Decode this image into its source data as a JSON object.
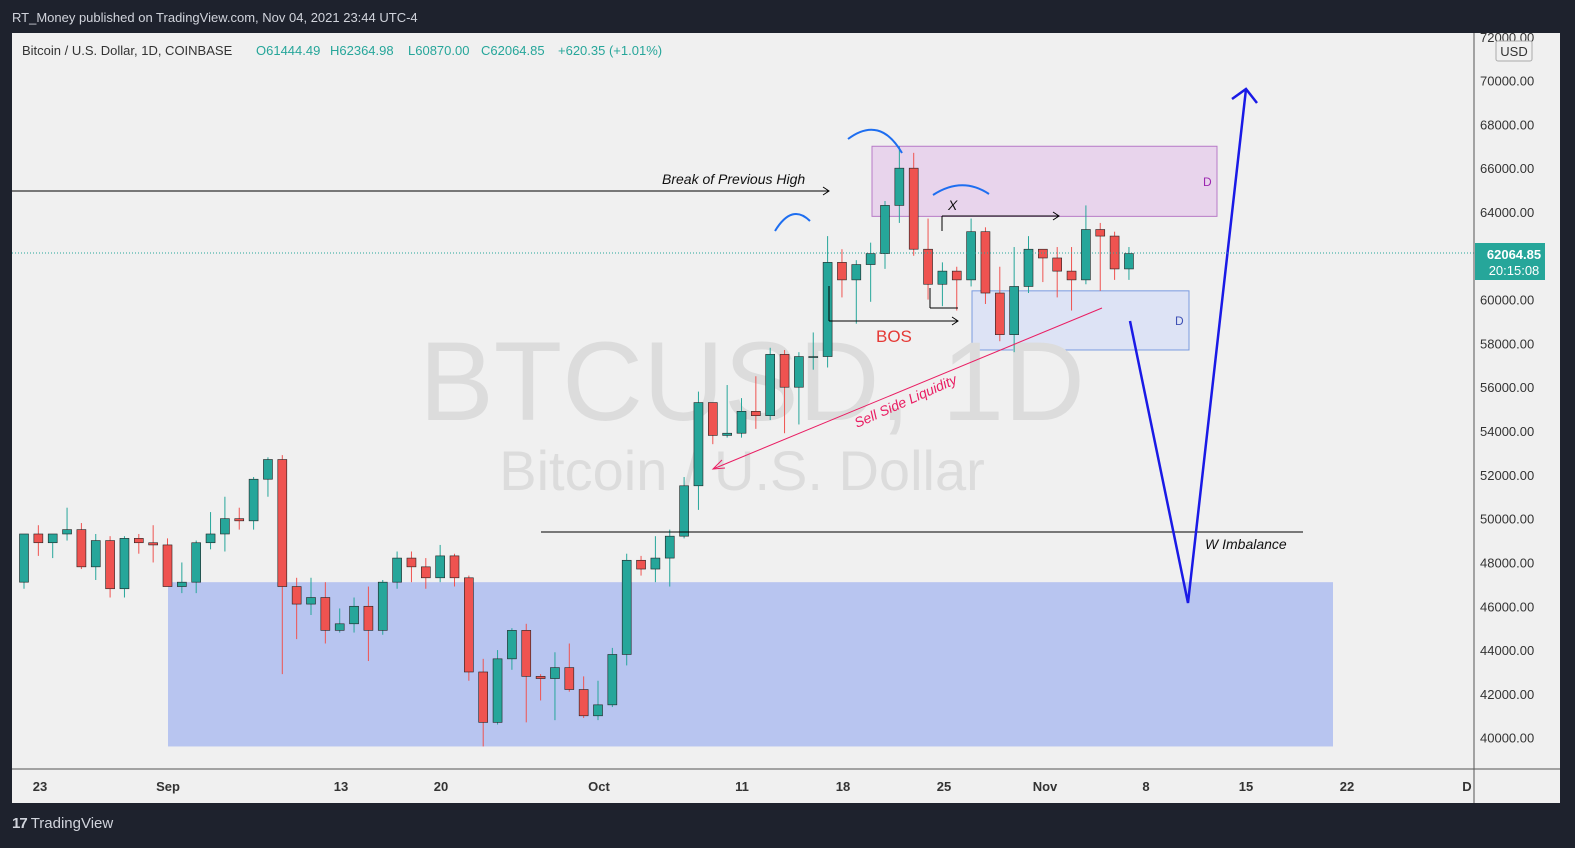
{
  "header": {
    "published": "RT_Money published on TradingView.com, Nov 04, 2021 23:44 UTC-4"
  },
  "legend": {
    "symbol": "Bitcoin / U.S. Dollar, 1D, COINBASE",
    "open": "O61444.49",
    "high": "H62364.98",
    "low": "L60870.00",
    "close": "C62064.85",
    "change": "+620.35 (+1.01%)"
  },
  "watermark": {
    "ticker": "BTCUSD, 1D",
    "name": "Bitcoin / U.S. Dollar"
  },
  "price_axis": {
    "currency": "USD",
    "last_price": "62064.85",
    "countdown": "20:15:08",
    "tick_labels": [
      "72000.00",
      "70000.00",
      "68000.00",
      "66000.00",
      "64000.00",
      "62000.00",
      "60000.00",
      "58000.00",
      "56000.00",
      "54000.00",
      "52000.00",
      "50000.00",
      "48000.00",
      "46000.00",
      "44000.00",
      "42000.00",
      "40000.00"
    ]
  },
  "annotations": {
    "break_high": "Break of Previous High",
    "bos": "BOS",
    "x": "X",
    "sell_side": "Sell Side Liquidity",
    "w_imbalance": "W Imbalance",
    "zone_upper_label": "D",
    "zone_lower_label": "D"
  },
  "footer": {
    "brand": "TradingView",
    "logo": "17"
  },
  "colors": {
    "up": "#26a69a",
    "down": "#ef5350",
    "blue_path": "#1a1ae6",
    "zone_big": "#b8c5f0",
    "zone_pink": "#e8d4ec",
    "zone_light": "#dde3f5",
    "annotation_pink": "#e91e63"
  },
  "chart_data": {
    "type": "candlestick",
    "title": "Bitcoin / U.S. Dollar, 1D, COINBASE",
    "x_tick_labels": [
      "23",
      "Sep",
      "13",
      "20",
      "Oct",
      "11",
      "18",
      "25",
      "Nov",
      "8",
      "15",
      "22",
      "D"
    ],
    "ylim": [
      39000,
      72500
    ],
    "candles": [
      {
        "d": "Aug 20",
        "o": 47100,
        "h": 49300,
        "l": 46800,
        "c": 49300
      },
      {
        "d": "Aug 21",
        "o": 49300,
        "h": 49700,
        "l": 48300,
        "c": 48900
      },
      {
        "d": "Aug 22",
        "o": 48900,
        "h": 49300,
        "l": 48200,
        "c": 49300
      },
      {
        "d": "Aug 23",
        "o": 49300,
        "h": 50500,
        "l": 49000,
        "c": 49500
      },
      {
        "d": "Aug 24",
        "o": 49500,
        "h": 49800,
        "l": 47700,
        "c": 47800
      },
      {
        "d": "Aug 25",
        "o": 47800,
        "h": 49300,
        "l": 47200,
        "c": 49000
      },
      {
        "d": "Aug 26",
        "o": 49000,
        "h": 49200,
        "l": 46400,
        "c": 46800
      },
      {
        "d": "Aug 27",
        "o": 46800,
        "h": 49200,
        "l": 46400,
        "c": 49100
      },
      {
        "d": "Aug 28",
        "o": 49100,
        "h": 49300,
        "l": 48400,
        "c": 48900
      },
      {
        "d": "Aug 29",
        "o": 48900,
        "h": 49700,
        "l": 48000,
        "c": 48800
      },
      {
        "d": "Aug 30",
        "o": 48800,
        "h": 49100,
        "l": 46900,
        "c": 46900
      },
      {
        "d": "Aug 31",
        "o": 46900,
        "h": 48000,
        "l": 46600,
        "c": 47100
      },
      {
        "d": "Sep 1",
        "o": 47100,
        "h": 49000,
        "l": 46600,
        "c": 48900
      },
      {
        "d": "Sep 2",
        "o": 48900,
        "h": 50300,
        "l": 48600,
        "c": 49300
      },
      {
        "d": "Sep 3",
        "o": 49300,
        "h": 51000,
        "l": 48500,
        "c": 50000
      },
      {
        "d": "Sep 4",
        "o": 50000,
        "h": 50500,
        "l": 49500,
        "c": 49900
      },
      {
        "d": "Sep 5",
        "o": 49900,
        "h": 51900,
        "l": 49500,
        "c": 51800
      },
      {
        "d": "Sep 6",
        "o": 51800,
        "h": 52800,
        "l": 51000,
        "c": 52700
      },
      {
        "d": "Sep 7",
        "o": 52700,
        "h": 52900,
        "l": 42900,
        "c": 46900
      },
      {
        "d": "Sep 8",
        "o": 46900,
        "h": 47300,
        "l": 44500,
        "c": 46100
      },
      {
        "d": "Sep 9",
        "o": 46100,
        "h": 47300,
        "l": 45600,
        "c": 46400
      },
      {
        "d": "Sep 10",
        "o": 46400,
        "h": 47100,
        "l": 44300,
        "c": 44900
      },
      {
        "d": "Sep 11",
        "o": 44900,
        "h": 45900,
        "l": 44800,
        "c": 45200
      },
      {
        "d": "Sep 12",
        "o": 45200,
        "h": 46400,
        "l": 44800,
        "c": 46000
      },
      {
        "d": "Sep 13",
        "o": 46000,
        "h": 46900,
        "l": 43500,
        "c": 44900
      },
      {
        "d": "Sep 14",
        "o": 44900,
        "h": 47200,
        "l": 44700,
        "c": 47100
      },
      {
        "d": "Sep 15",
        "o": 47100,
        "h": 48500,
        "l": 46800,
        "c": 48200
      },
      {
        "d": "Sep 16",
        "o": 48200,
        "h": 48500,
        "l": 47100,
        "c": 47800
      },
      {
        "d": "Sep 17",
        "o": 47800,
        "h": 48200,
        "l": 46800,
        "c": 47300
      },
      {
        "d": "Sep 18",
        "o": 47300,
        "h": 48800,
        "l": 47100,
        "c": 48300
      },
      {
        "d": "Sep 19",
        "o": 48300,
        "h": 48400,
        "l": 46900,
        "c": 47300
      },
      {
        "d": "Sep 20",
        "o": 47300,
        "h": 47400,
        "l": 42600,
        "c": 43000
      },
      {
        "d": "Sep 21",
        "o": 43000,
        "h": 43600,
        "l": 39600,
        "c": 40700
      },
      {
        "d": "Sep 22",
        "o": 40700,
        "h": 44000,
        "l": 40600,
        "c": 43600
      },
      {
        "d": "Sep 23",
        "o": 43600,
        "h": 45000,
        "l": 43100,
        "c": 44900
      },
      {
        "d": "Sep 24",
        "o": 44900,
        "h": 45200,
        "l": 40700,
        "c": 42800
      },
      {
        "d": "Sep 25",
        "o": 42800,
        "h": 42900,
        "l": 41700,
        "c": 42700
      },
      {
        "d": "Sep 26",
        "o": 42700,
        "h": 43900,
        "l": 40800,
        "c": 43200
      },
      {
        "d": "Sep 27",
        "o": 43200,
        "h": 44300,
        "l": 42100,
        "c": 42200
      },
      {
        "d": "Sep 28",
        "o": 42200,
        "h": 42800,
        "l": 40900,
        "c": 41000
      },
      {
        "d": "Sep 29",
        "o": 41000,
        "h": 42600,
        "l": 40800,
        "c": 41500
      },
      {
        "d": "Sep 30",
        "o": 41500,
        "h": 44100,
        "l": 41400,
        "c": 43800
      },
      {
        "d": "Oct 1",
        "o": 43800,
        "h": 48400,
        "l": 43300,
        "c": 48100
      },
      {
        "d": "Oct 2",
        "o": 48100,
        "h": 48300,
        "l": 47400,
        "c": 47700
      },
      {
        "d": "Oct 3",
        "o": 47700,
        "h": 49200,
        "l": 47100,
        "c": 48200
      },
      {
        "d": "Oct 4",
        "o": 48200,
        "h": 49500,
        "l": 46900,
        "c": 49200
      },
      {
        "d": "Oct 5",
        "o": 49200,
        "h": 51900,
        "l": 49100,
        "c": 51500
      },
      {
        "d": "Oct 6",
        "o": 51500,
        "h": 55800,
        "l": 50400,
        "c": 55300
      },
      {
        "d": "Oct 7",
        "o": 55300,
        "h": 55300,
        "l": 53400,
        "c": 53800
      },
      {
        "d": "Oct 8",
        "o": 53800,
        "h": 56100,
        "l": 53700,
        "c": 53900
      },
      {
        "d": "Oct 9",
        "o": 53900,
        "h": 55500,
        "l": 53700,
        "c": 54900
      },
      {
        "d": "Oct 10",
        "o": 54900,
        "h": 56500,
        "l": 54100,
        "c": 54700
      },
      {
        "d": "Oct 11",
        "o": 54700,
        "h": 57800,
        "l": 54500,
        "c": 57500
      },
      {
        "d": "Oct 12",
        "o": 57500,
        "h": 57700,
        "l": 53900,
        "c": 56000
      },
      {
        "d": "Oct 13",
        "o": 56000,
        "h": 57600,
        "l": 54300,
        "c": 57400
      },
      {
        "d": "Oct 14",
        "o": 57400,
        "h": 58500,
        "l": 56800,
        "c": 57400
      },
      {
        "d": "Oct 15",
        "o": 57400,
        "h": 62900,
        "l": 56900,
        "c": 61700
      },
      {
        "d": "Oct 16",
        "o": 61700,
        "h": 62300,
        "l": 60100,
        "c": 60900
      },
      {
        "d": "Oct 17",
        "o": 60900,
        "h": 61800,
        "l": 58900,
        "c": 61600
      },
      {
        "d": "Oct 18",
        "o": 61600,
        "h": 62600,
        "l": 59900,
        "c": 62100
      },
      {
        "d": "Oct 19",
        "o": 62100,
        "h": 64500,
        "l": 61400,
        "c": 64300
      },
      {
        "d": "Oct 20",
        "o": 64300,
        "h": 67000,
        "l": 63500,
        "c": 66000
      },
      {
        "d": "Oct 21",
        "o": 66000,
        "h": 66700,
        "l": 62000,
        "c": 62300
      },
      {
        "d": "Oct 22",
        "o": 62300,
        "h": 63700,
        "l": 60000,
        "c": 60700
      },
      {
        "d": "Oct 23",
        "o": 60700,
        "h": 61700,
        "l": 59700,
        "c": 61300
      },
      {
        "d": "Oct 24",
        "o": 61300,
        "h": 61500,
        "l": 59500,
        "c": 60900
      },
      {
        "d": "Oct 25",
        "o": 60900,
        "h": 63700,
        "l": 60600,
        "c": 63100
      },
      {
        "d": "Oct 26",
        "o": 63100,
        "h": 63300,
        "l": 59800,
        "c": 60300
      },
      {
        "d": "Oct 27",
        "o": 60300,
        "h": 61500,
        "l": 58100,
        "c": 58400
      },
      {
        "d": "Oct 28",
        "o": 58400,
        "h": 62400,
        "l": 57600,
        "c": 60600
      },
      {
        "d": "Oct 29",
        "o": 60600,
        "h": 62900,
        "l": 60300,
        "c": 62300
      },
      {
        "d": "Oct 30",
        "o": 62300,
        "h": 62300,
        "l": 60800,
        "c": 61900
      },
      {
        "d": "Oct 31",
        "o": 61900,
        "h": 62400,
        "l": 60100,
        "c": 61300
      },
      {
        "d": "Nov 1",
        "o": 61300,
        "h": 62400,
        "l": 59500,
        "c": 60900
      },
      {
        "d": "Nov 2",
        "o": 60900,
        "h": 64300,
        "l": 60700,
        "c": 63200
      },
      {
        "d": "Nov 3",
        "o": 63200,
        "h": 63500,
        "l": 60400,
        "c": 62900
      },
      {
        "d": "Nov 4",
        "o": 62900,
        "h": 63100,
        "l": 60900,
        "c": 61400
      },
      {
        "d": "Nov 5",
        "o": 61400,
        "h": 62400,
        "l": 60900,
        "c": 62100
      }
    ]
  }
}
